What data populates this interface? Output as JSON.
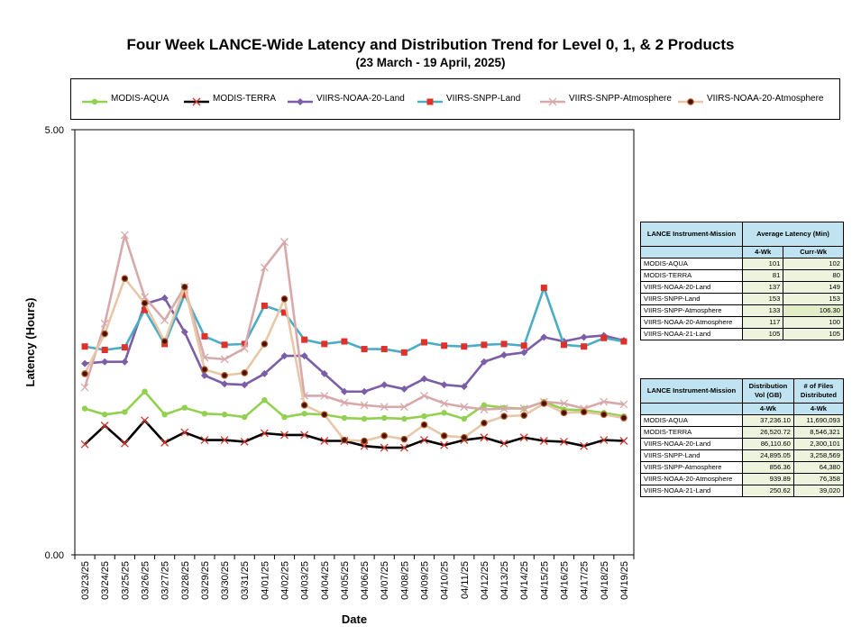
{
  "title": "Four Week LANCE-Wide Latency and Distribution Trend for Level 0, 1, & 2 Products",
  "subtitle": "(23  March   - 19  April,  2025)",
  "chart_data": {
    "type": "line",
    "xlabel": "Date",
    "ylabel": "Latency (Hours)",
    "ylim": [
      0,
      5
    ],
    "y_tick_labels": [
      "0.00",
      "5.00"
    ],
    "legend_position": "top",
    "categories": [
      "03/23/25",
      "03/24/25",
      "03/25/25",
      "03/26/25",
      "03/27/25",
      "03/28/25",
      "03/29/25",
      "03/30/25",
      "03/31/25",
      "04/01/25",
      "04/02/25",
      "04/03/25",
      "04/04/25",
      "04/05/25",
      "04/06/25",
      "04/07/25",
      "04/08/25",
      "04/09/25",
      "04/10/25",
      "04/11/25",
      "04/12/25",
      "04/13/25",
      "04/14/25",
      "04/15/25",
      "04/16/25",
      "04/17/25",
      "04/18/25",
      "04/19/25"
    ],
    "series": [
      {
        "name": "MODIS-AQUA",
        "color": "#92d050",
        "marker": "circle",
        "values": [
          1.72,
          1.65,
          1.68,
          1.92,
          1.65,
          1.73,
          1.66,
          1.65,
          1.62,
          1.82,
          1.62,
          1.66,
          1.65,
          1.61,
          1.6,
          1.61,
          1.6,
          1.63,
          1.67,
          1.6,
          1.76,
          1.73,
          1.72,
          1.8,
          1.71,
          1.7,
          1.67,
          1.63
        ]
      },
      {
        "name": "MODIS-TERRA",
        "color": "#000000",
        "marker": "x",
        "values": [
          1.3,
          1.52,
          1.31,
          1.58,
          1.32,
          1.44,
          1.35,
          1.35,
          1.33,
          1.43,
          1.41,
          1.41,
          1.34,
          1.34,
          1.28,
          1.26,
          1.26,
          1.35,
          1.29,
          1.35,
          1.38,
          1.31,
          1.38,
          1.34,
          1.33,
          1.28,
          1.35,
          1.34
        ]
      },
      {
        "name": "VIIRS-NOAA-20-Land",
        "color": "#7b5ea7",
        "marker": "diamond",
        "values": [
          2.25,
          2.27,
          2.27,
          2.95,
          3.02,
          2.62,
          2.11,
          2.01,
          2.0,
          2.13,
          2.34,
          2.34,
          2.13,
          1.92,
          1.92,
          2.0,
          1.95,
          2.07,
          2.0,
          1.98,
          2.27,
          2.35,
          2.38,
          2.56,
          2.51,
          2.56,
          2.58,
          2.52
        ]
      },
      {
        "name": "VIIRS-SNPP-Land",
        "color": "#4bacc6",
        "marker": "square",
        "values": [
          2.45,
          2.41,
          2.44,
          2.88,
          2.48,
          3.06,
          2.57,
          2.47,
          2.48,
          2.93,
          2.85,
          2.53,
          2.48,
          2.51,
          2.42,
          2.42,
          2.38,
          2.5,
          2.46,
          2.45,
          2.47,
          2.48,
          2.46,
          3.14,
          2.47,
          2.45,
          2.55,
          2.51
        ]
      },
      {
        "name": "VIIRS-SNPP-Atmosphere",
        "color": "#d8a9ab",
        "marker": "x",
        "values": [
          1.97,
          2.72,
          3.76,
          3.03,
          2.76,
          3.15,
          2.32,
          2.3,
          2.43,
          3.38,
          3.68,
          1.87,
          1.87,
          1.79,
          1.76,
          1.74,
          1.74,
          1.87,
          1.78,
          1.74,
          1.71,
          1.72,
          1.72,
          1.8,
          1.78,
          1.72,
          1.8,
          1.77
        ]
      },
      {
        "name": "VIIRS-NOAA-20-Atmosphere",
        "color": "#e7c7a8",
        "marker": "dot",
        "values": [
          2.13,
          2.6,
          3.25,
          2.96,
          2.51,
          3.15,
          2.18,
          2.11,
          2.14,
          2.48,
          3.01,
          1.76,
          1.65,
          1.35,
          1.34,
          1.4,
          1.36,
          1.53,
          1.4,
          1.38,
          1.55,
          1.63,
          1.64,
          1.78,
          1.67,
          1.68,
          1.65,
          1.61
        ]
      }
    ]
  },
  "latency_table": {
    "header_col1": "LANCE Instrument-Mission",
    "header_group": "Average Latency (Min)",
    "subheader_4wk": "4-Wk",
    "subheader_curr": "Curr-Wk",
    "rows": [
      {
        "name": "MODIS-AQUA",
        "wk4": "101",
        "curr": "102"
      },
      {
        "name": "MODIS-TERRA",
        "wk4": "81",
        "curr": "80"
      },
      {
        "name": "VIIRS-NOAA-20-Land",
        "wk4": "137",
        "curr": "149"
      },
      {
        "name": "VIIRS-SNPP-Land",
        "wk4": "153",
        "curr": "153"
      },
      {
        "name": "VIIRS-SNPP-Atmosphere",
        "wk4": "133",
        "curr": "106.30"
      },
      {
        "name": "VIIRS-NOAA-20-Atmosphere",
        "wk4": "117",
        "curr": "100"
      },
      {
        "name": "VIIRS-NOAA-21-Land",
        "wk4": "105",
        "curr": "105"
      }
    ]
  },
  "distribution_table": {
    "header_col1": "LANCE Instrument-Mission",
    "header_vol": "Distribution Vol (GB)",
    "header_files": "# of Files Distributed",
    "subheader_vol": "4-Wk",
    "subheader_files": "4-Wk",
    "rows": [
      {
        "name": "MODIS-AQUA",
        "vol": "37,236.10",
        "files": "11,690,093"
      },
      {
        "name": "MODIS-TERRA",
        "vol": "26,520.72",
        "files": "8,546,321"
      },
      {
        "name": "VIIRS-NOAA-20-Land",
        "vol": "86,110.60",
        "files": "2,300,101"
      },
      {
        "name": "VIIRS-SNPP-Land",
        "vol": "24,895.05",
        "files": "3,258,569"
      },
      {
        "name": "VIIRS-SNPP-Atmosphere",
        "vol": "856.36",
        "files": "64,380"
      },
      {
        "name": "VIIRS-NOAA-20-Atmosphere",
        "vol": "939.89",
        "files": "76,358"
      },
      {
        "name": "VIIRS-NOAA-21-Land",
        "vol": "250.62",
        "files": "39,020"
      }
    ]
  }
}
